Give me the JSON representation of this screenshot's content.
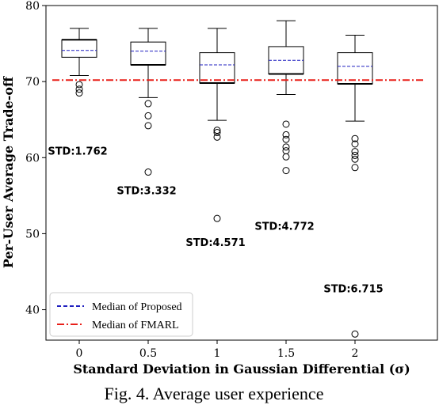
{
  "chart_data": {
    "type": "box",
    "title": "",
    "xlabel": "Standard Deviation in Gaussian Differential (σ)",
    "ylabel": "Per-User Average Trade-off",
    "ylim": [
      36,
      80
    ],
    "yticks": [
      40,
      50,
      60,
      70,
      80
    ],
    "categories": [
      "0",
      "0.5",
      "1",
      "1.5",
      "2"
    ],
    "boxes": [
      {
        "category": "0",
        "whisker_low": 70.8,
        "q1": 73.2,
        "median": 75.5,
        "q3": 75.5,
        "whisker_high": 77.0,
        "median_proposed": 74.1,
        "outliers": [
          69.6,
          69.0,
          68.5
        ],
        "std_label": "STD:1.762",
        "std_label_y": 60.4
      },
      {
        "category": "0.5",
        "whisker_low": 67.9,
        "q1": 72.2,
        "median": 72.2,
        "q3": 75.2,
        "whisker_high": 77.0,
        "median_proposed": 74.0,
        "outliers": [
          67.1,
          65.5,
          64.2,
          58.1
        ],
        "std_label": "STD:3.332",
        "std_label_y": 55.2
      },
      {
        "category": "1",
        "whisker_low": 64.9,
        "q1": 69.8,
        "median": 69.8,
        "q3": 73.8,
        "whisker_high": 77.0,
        "median_proposed": 72.2,
        "outliers": [
          63.6,
          63.3,
          62.7,
          52.0
        ],
        "std_label": "STD:4.571",
        "std_label_y": 48.4
      },
      {
        "category": "1.5",
        "whisker_low": 68.3,
        "q1": 71.0,
        "median": 71.0,
        "q3": 74.6,
        "whisker_high": 78.0,
        "median_proposed": 72.8,
        "outliers": [
          64.4,
          63.0,
          62.4,
          61.4,
          60.9,
          60.1,
          58.3
        ],
        "std_label": "STD:4.772",
        "std_label_y": 50.5
      },
      {
        "category": "2",
        "whisker_low": 64.8,
        "q1": 69.7,
        "median": 69.7,
        "q3": 73.8,
        "whisker_high": 76.1,
        "median_proposed": 72.0,
        "outliers": [
          62.5,
          61.8,
          60.8,
          60.3,
          59.8,
          58.7,
          36.8
        ],
        "std_label": "STD:6.715",
        "std_label_y": 42.3
      }
    ],
    "reference_line": {
      "name": "Median of FMARL",
      "y": 70.2,
      "color": "#e8201a"
    },
    "median_series": {
      "name": "Median of Proposed",
      "color": "#1f1fbf"
    },
    "legend_position": "lower-left"
  },
  "caption": "Fig. 4. Average user experience"
}
